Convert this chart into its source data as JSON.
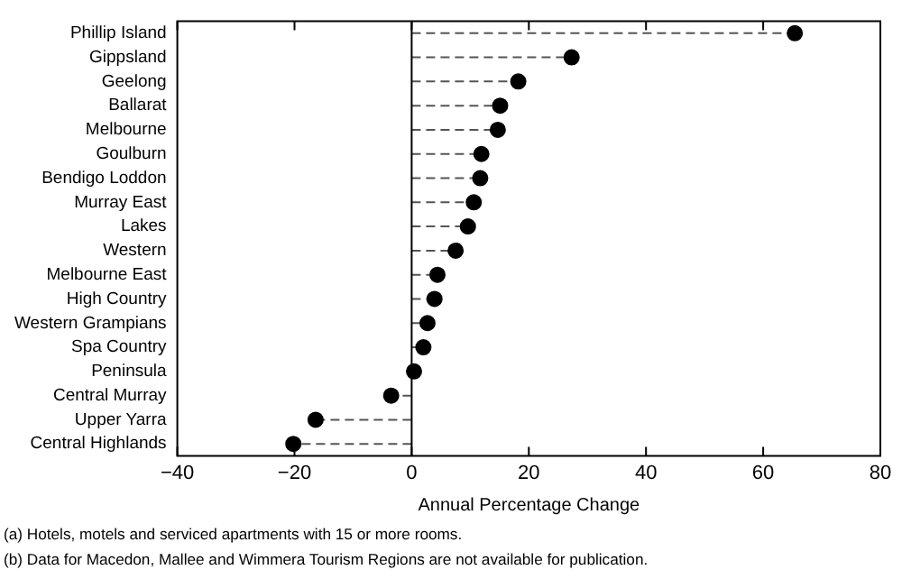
{
  "chart_data": {
    "type": "lollipop",
    "orientation": "horizontal",
    "xlabel": "Annual Percentage Change",
    "categories": [
      "Phillip Island",
      "Gippsland",
      "Geelong",
      "Ballarat",
      "Melbourne",
      "Goulburn",
      "Bendigo Loddon",
      "Murray East",
      "Lakes",
      "Western",
      "Melbourne East",
      "High Country",
      "Western Grampians",
      "Spa Country",
      "Peninsula",
      "Central Murray",
      "Upper Yarra",
      "Central Highlands"
    ],
    "values": [
      65.4,
      27.3,
      18.2,
      15.1,
      14.7,
      11.9,
      11.7,
      10.6,
      9.6,
      7.5,
      4.4,
      3.9,
      2.7,
      2.0,
      0.4,
      -3.5,
      -16.4,
      -20.2
    ],
    "color": "#000000",
    "marker": "circle",
    "line_style": "dashed",
    "grid": false,
    "legend": false,
    "xlim": [
      -40,
      80
    ],
    "xticks": [
      {
        "value": -40,
        "label": "−40"
      },
      {
        "value": -20,
        "label": "−20"
      },
      0,
      20,
      40,
      60,
      80
    ],
    "ref_lines": [
      {
        "axis": "x",
        "value": 0,
        "color": "#000000"
      }
    ],
    "annotations": [
      "(a) Hotels, motels and serviced apartments with 15 or more rooms.",
      "(b) Data for Macedon, Mallee and Wimmera Tourism Regions are not available for publication."
    ]
  }
}
